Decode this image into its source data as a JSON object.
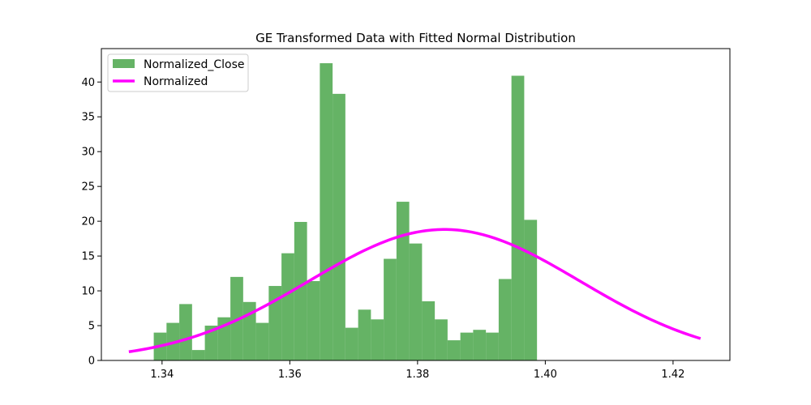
{
  "chart_data": {
    "type": "bar",
    "title": "GE Transformed Data with Fitted Normal Distribution",
    "xlabel": "",
    "ylabel": "",
    "xlim": [
      1.3305,
      1.4289
    ],
    "ylim": [
      0,
      44.8
    ],
    "x_ticks": [
      1.34,
      1.36,
      1.38,
      1.4,
      1.42
    ],
    "x_tick_labels": [
      "1.34",
      "1.36",
      "1.38",
      "1.40",
      "1.42"
    ],
    "y_ticks": [
      0,
      5,
      10,
      15,
      20,
      25,
      30,
      35,
      40
    ],
    "y_tick_labels": [
      "0",
      "5",
      "10",
      "15",
      "20",
      "25",
      "30",
      "35",
      "40"
    ],
    "grid": false,
    "legend_position": "upper-left",
    "histogram": {
      "name": "Normalized_Close",
      "color": "#4aa64a",
      "alpha": 0.85,
      "bin_start": 1.3387,
      "bin_width": 0.002,
      "values": [
        4.0,
        5.4,
        8.1,
        1.5,
        5.0,
        6.2,
        12.0,
        8.4,
        5.4,
        10.7,
        15.4,
        19.9,
        11.4,
        42.7,
        38.3,
        4.7,
        7.3,
        5.9,
        14.6,
        22.8,
        16.8,
        8.5,
        5.9,
        2.9,
        4.0,
        4.4,
        4.0,
        11.7,
        40.9,
        20.2
      ]
    },
    "normal_fit": {
      "name": "Normalized",
      "color": "#ff00ff",
      "mean": 1.3842,
      "std": 0.0212,
      "x_range": [
        1.3348,
        1.4243
      ]
    }
  }
}
